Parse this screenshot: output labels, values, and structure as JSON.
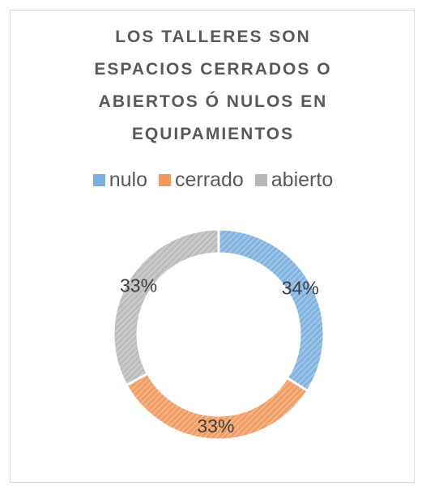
{
  "chart_data": {
    "type": "donut",
    "title": "LOS TALLERES SON ESPACIOS CERRADOS O ABIERTOS Ó NULOS EN EQUIPAMIENTOS",
    "categories": [
      "nulo",
      "cerrado",
      "abierto"
    ],
    "values": [
      34,
      33,
      33
    ],
    "value_labels": [
      "34%",
      "33%",
      "33%"
    ],
    "colors": [
      "#5b9bd5",
      "#ed7d31",
      "#a5a5a5"
    ],
    "legend": "top"
  }
}
